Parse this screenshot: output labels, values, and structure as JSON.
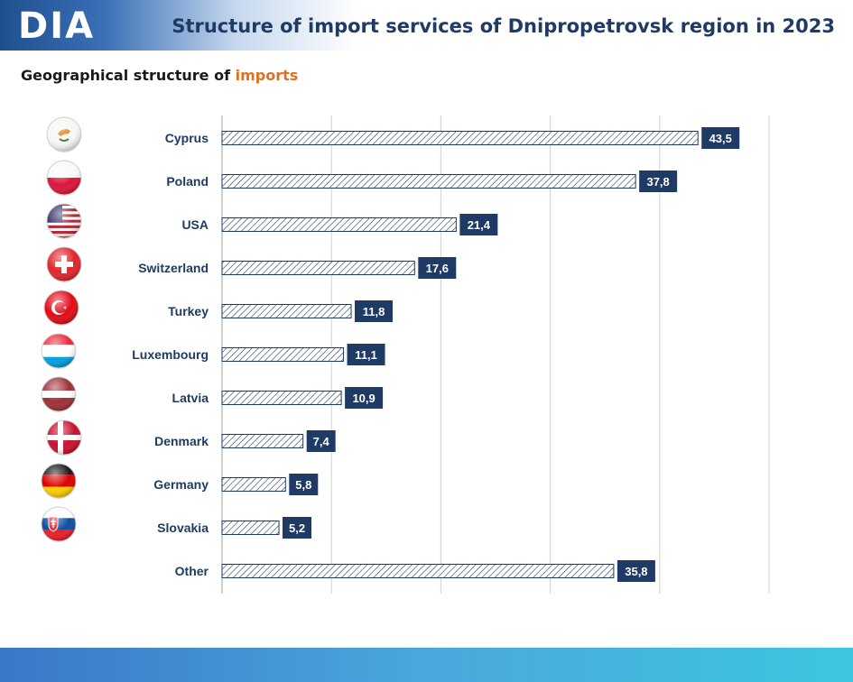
{
  "header": {
    "logo": "DIA",
    "title": "Structure of import services of Dnipropetrovsk region in 2023"
  },
  "subtitle": {
    "prefix": "Geographical  structure  of ",
    "accent": "imports"
  },
  "colors": {
    "label_text": "#1f3a64",
    "value_box": "#1f3a64",
    "bar_stroke": "#1f3a64",
    "grid": "#d0d0d0",
    "accent": "#e07020"
  },
  "chart_data": {
    "type": "bar",
    "orientation": "horizontal",
    "categories": [
      "Cyprus",
      "Poland",
      "USA",
      "Switzerland",
      "Turkey",
      "Luxembourg",
      "Latvia",
      "Denmark",
      "Germany",
      "Slovakia",
      "Other"
    ],
    "values": [
      43.5,
      37.8,
      21.4,
      17.6,
      11.8,
      11.1,
      10.9,
      7.4,
      5.8,
      5.2,
      35.8
    ],
    "value_labels": [
      "43,5",
      "37,8",
      "21,4",
      "17,6",
      "11,8",
      "11,1",
      "10,9",
      "7,4",
      "5,8",
      "5,2",
      "35,8"
    ],
    "flag_icons": [
      "cyprus-flag-icon",
      "poland-flag-icon",
      "usa-flag-icon",
      "switzerland-flag-icon",
      "turkey-flag-icon",
      "luxembourg-flag-icon",
      "latvia-flag-icon",
      "denmark-flag-icon",
      "germany-flag-icon",
      "slovakia-flag-icon",
      ""
    ],
    "xlim": [
      0,
      50
    ],
    "grid": true,
    "legend": "none"
  }
}
